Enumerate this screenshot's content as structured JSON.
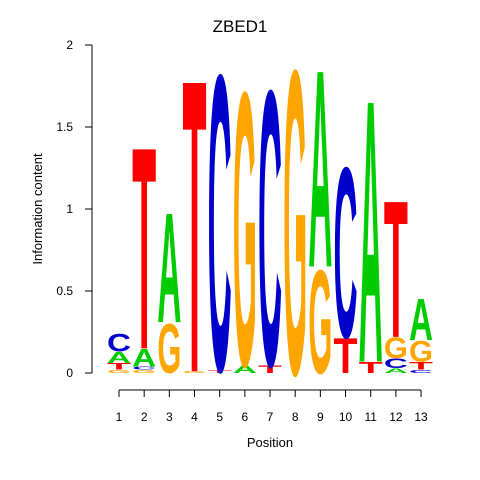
{
  "chart_data": {
    "type": "sequence-logo",
    "title": "ZBED1",
    "xlabel": "Position",
    "ylabel": "Information content",
    "ylim": [
      0,
      2
    ],
    "yticks": [
      "0",
      "0.5",
      "1",
      "1.5",
      "2"
    ],
    "positions": [
      "1",
      "2",
      "3",
      "4",
      "5",
      "6",
      "7",
      "8",
      "9",
      "10",
      "11",
      "12",
      "13"
    ],
    "colors": {
      "A": "#00CC00",
      "C": "#0000CC",
      "G": "#FFA500",
      "T": "#FF0000"
    },
    "columns": [
      [
        [
          "G",
          0.02
        ],
        [
          "T",
          0.04
        ],
        [
          "A",
          0.07
        ],
        [
          "C",
          0.11
        ]
      ],
      [
        [
          "G",
          0.02
        ],
        [
          "C",
          0.02
        ],
        [
          "A",
          0.11
        ],
        [
          "T",
          1.27
        ]
      ],
      [
        [
          "G",
          0.31
        ],
        [
          "A",
          0.69
        ]
      ],
      [
        [
          "G",
          0.01
        ],
        [
          "T",
          1.84
        ]
      ],
      [
        [
          "T",
          0.02
        ],
        [
          "C",
          1.86
        ]
      ],
      [
        [
          "A",
          0.05
        ],
        [
          "G",
          1.72
        ]
      ],
      [
        [
          "T",
          0.05
        ],
        [
          "C",
          1.73
        ]
      ],
      [
        [
          "G",
          1.91
        ]
      ],
      [
        [
          "G",
          0.65
        ],
        [
          "A",
          1.24
        ]
      ],
      [
        [
          "T",
          0.22
        ],
        [
          "C",
          1.07
        ]
      ],
      [
        [
          "T",
          0.07
        ],
        [
          "A",
          1.65
        ]
      ],
      [
        [
          "A",
          0.03
        ],
        [
          "C",
          0.06
        ],
        [
          "G",
          0.13
        ],
        [
          "T",
          0.86
        ]
      ],
      [
        [
          "C",
          0.02
        ],
        [
          "T",
          0.05
        ],
        [
          "G",
          0.13
        ],
        [
          "A",
          0.26
        ]
      ]
    ]
  }
}
